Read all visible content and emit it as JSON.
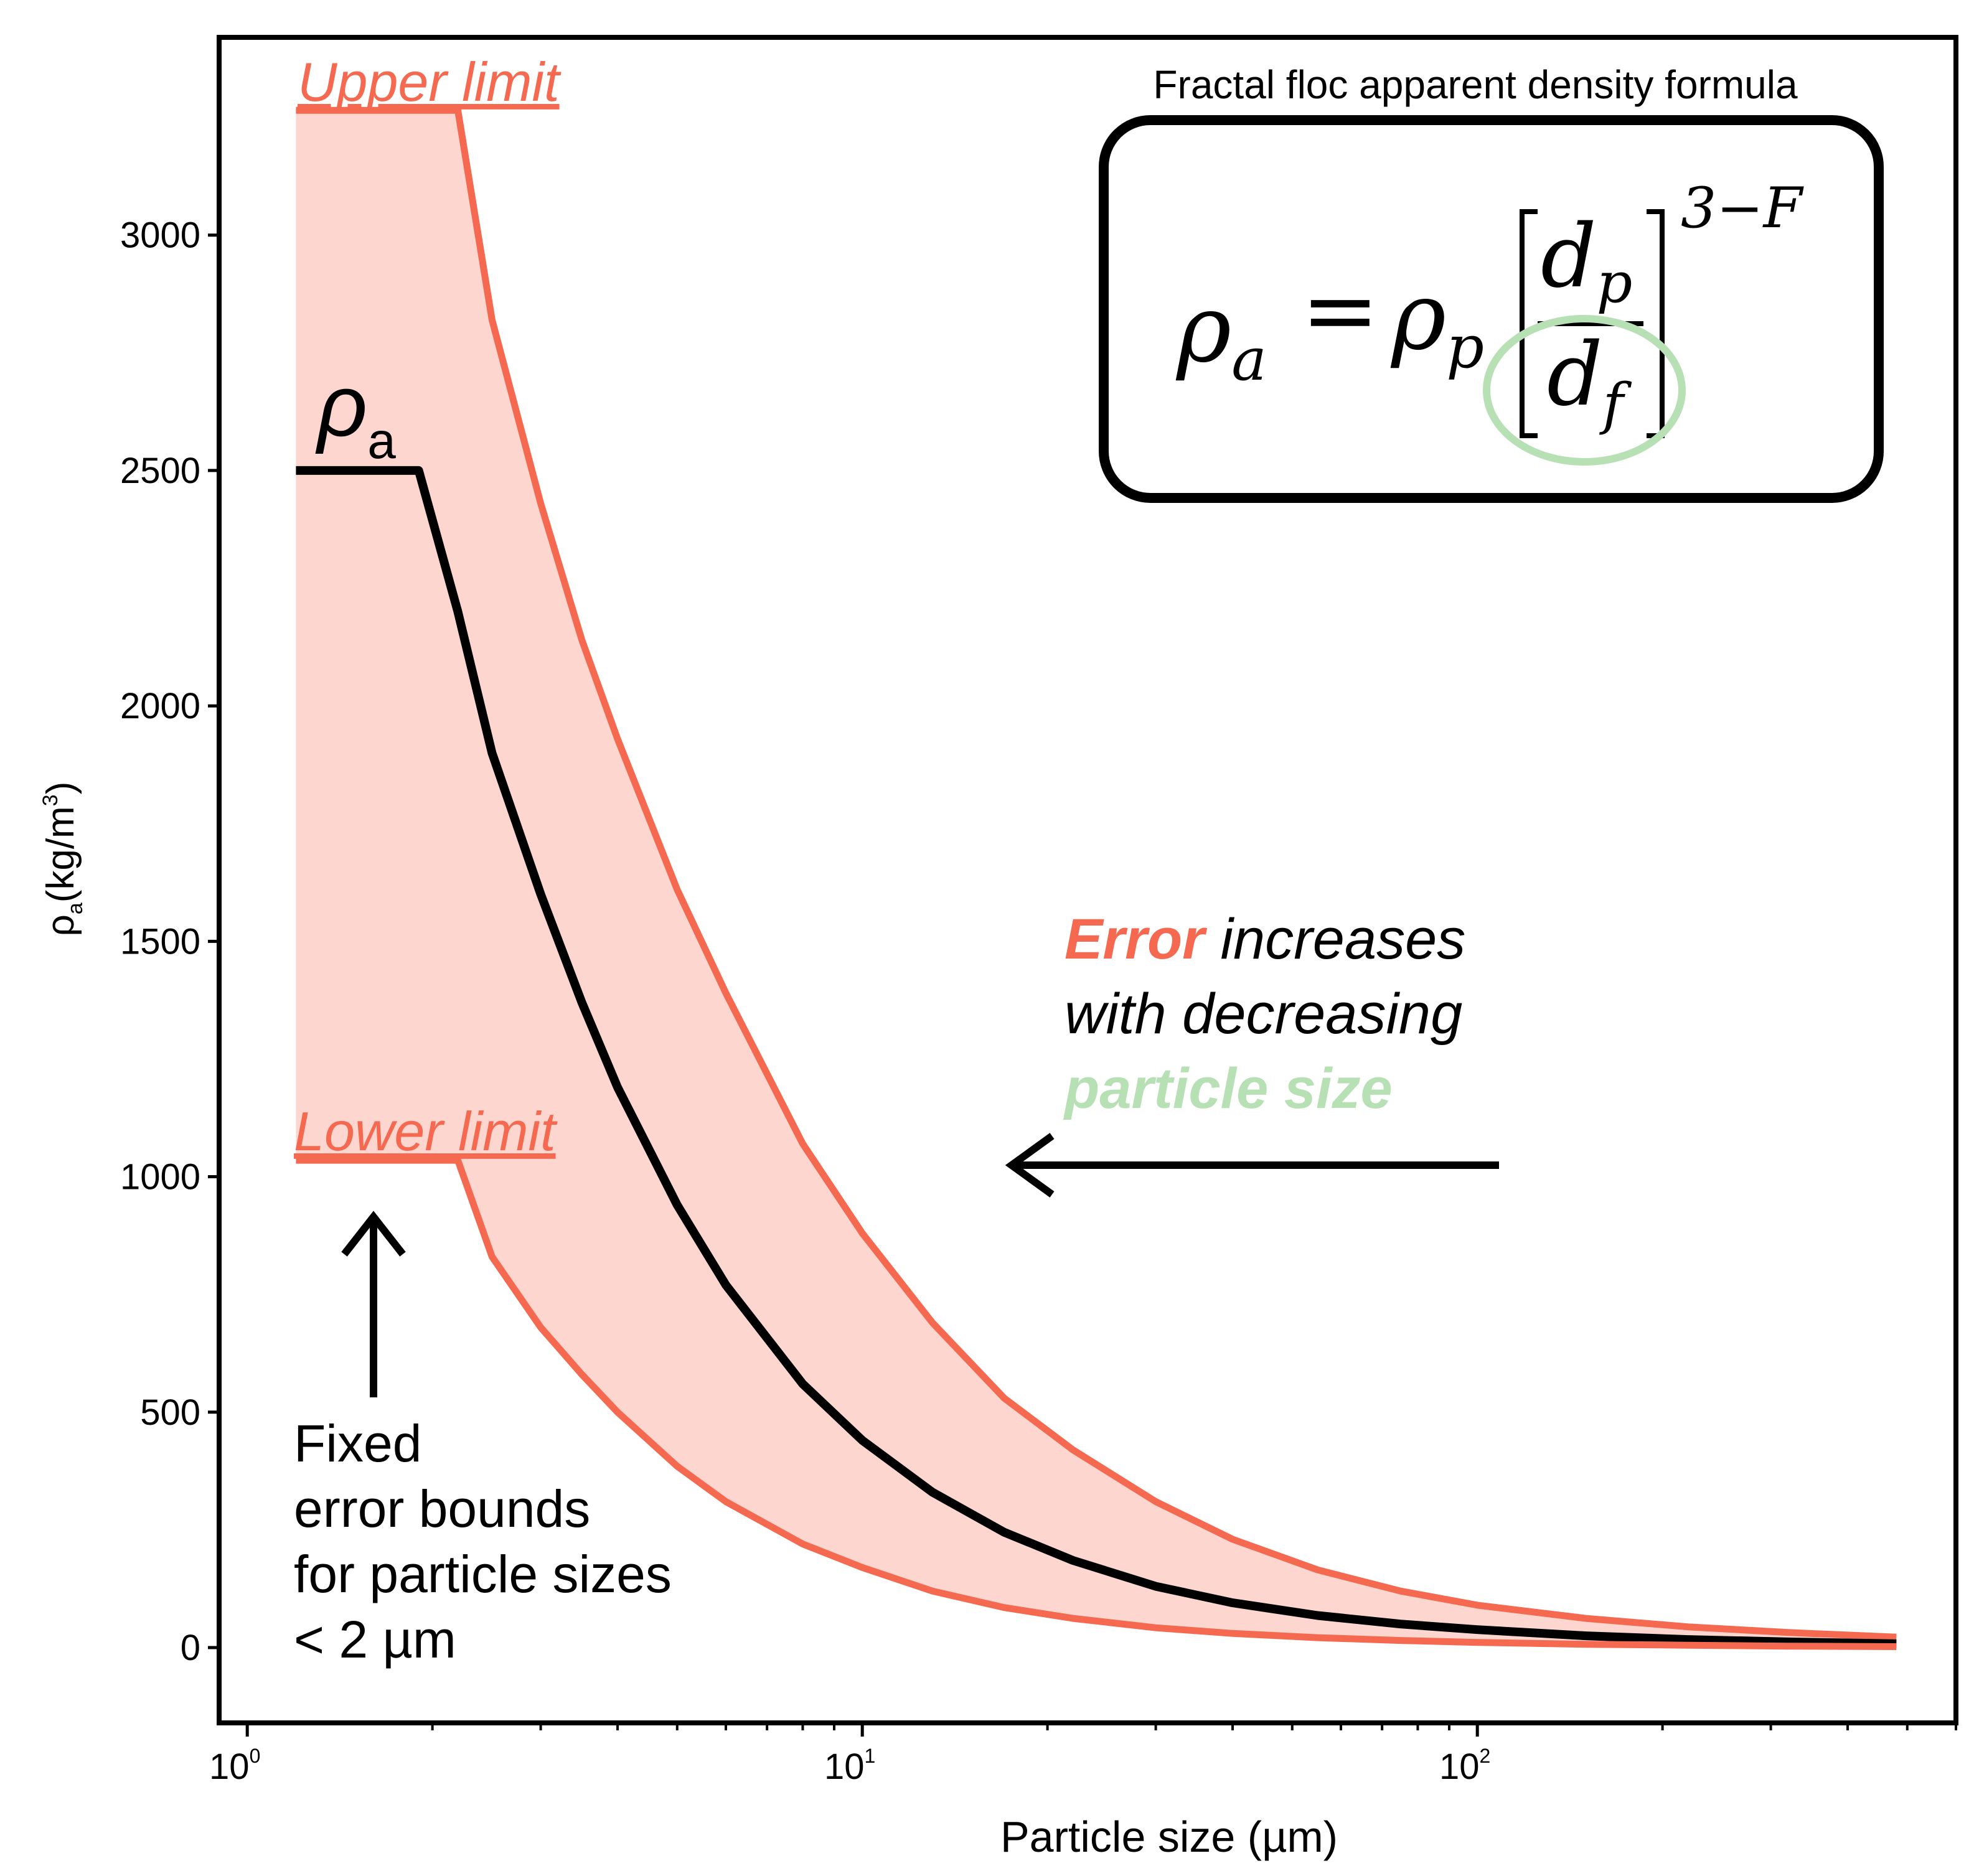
{
  "chart_data": {
    "type": "line",
    "title": "",
    "xlabel": "Particle size (µm)",
    "ylabel_main": "ρ",
    "ylabel_sub": "a",
    "ylabel_rest": "(kg/m",
    "ylabel_sup": "3",
    "ylabel_close": ")",
    "xscale": "log",
    "xlim": [
      0.9,
      600
    ],
    "ylim": [
      -160,
      3420
    ],
    "x_ticks": [
      {
        "value": 1,
        "base": "10",
        "exp": "0"
      },
      {
        "value": 10,
        "base": "10",
        "exp": "1"
      },
      {
        "value": 100,
        "base": "10",
        "exp": "2"
      }
    ],
    "y_ticks": [
      0,
      500,
      1000,
      1500,
      2000,
      2500,
      3000
    ],
    "y_tick_labels": [
      "0",
      "500",
      "1000",
      "1500",
      "2000",
      "2500",
      "3000"
    ],
    "x": [
      1.2,
      1.9,
      2.2,
      2.5,
      3.0,
      3.5,
      4.0,
      5.0,
      6.0,
      8.0,
      10.0,
      13.0,
      17.0,
      22.0,
      30.0,
      40.0,
      55.0,
      75.0,
      100.0,
      150.0,
      220.0,
      320.0,
      480.0
    ],
    "series": [
      {
        "name": "Upper limit",
        "color": "#f4694f",
        "values": [
          3265,
          3265,
          3265,
          2820,
          2430,
          2140,
          1930,
          1610,
          1390,
          1070,
          880,
          690,
          530,
          420,
          310,
          230,
          165,
          120,
          90,
          62,
          44,
          32,
          22
        ]
      },
      {
        "name": "ρa",
        "color": "#000000",
        "values": [
          2500,
          2500,
          2200,
          1900,
          1600,
          1370,
          1190,
          940,
          770,
          560,
          440,
          330,
          245,
          185,
          130,
          95,
          68,
          50,
          38,
          25,
          17,
          12,
          8
        ]
      },
      {
        "name": "Lower limit",
        "color": "#f4694f",
        "values": [
          1035,
          1035,
          1035,
          830,
          680,
          580,
          500,
          385,
          310,
          220,
          170,
          120,
          85,
          62,
          42,
          30,
          21,
          15,
          11,
          7,
          5,
          3,
          2
        ]
      }
    ],
    "band_fill": "#fdd6cf",
    "series_labels": {
      "upper": "Upper limit",
      "lower": "Lower limit",
      "center_main": "ρ",
      "center_sub": "a"
    },
    "formula": {
      "caption": "Fractal floc apparent density formula",
      "lhs": "ρ",
      "lhs_sub": "a",
      "equals": "=",
      "rhs": "ρ",
      "rhs_sub": "p",
      "numerator": "d",
      "numerator_sub": "p",
      "denominator": "d",
      "denominator_sub": "f",
      "exponent": "3−F",
      "highlight_color": "#b8e0b5"
    },
    "annotations": {
      "error_word": "Error",
      "error_rest": " increases",
      "line2": "with decreasing",
      "line3": "particle size",
      "error_color": "#f4694f",
      "particle_color": "#b8e0b5",
      "fixed_lines": [
        "Fixed",
        "error bounds",
        "for particle sizes",
        " < 2 µm"
      ]
    }
  }
}
